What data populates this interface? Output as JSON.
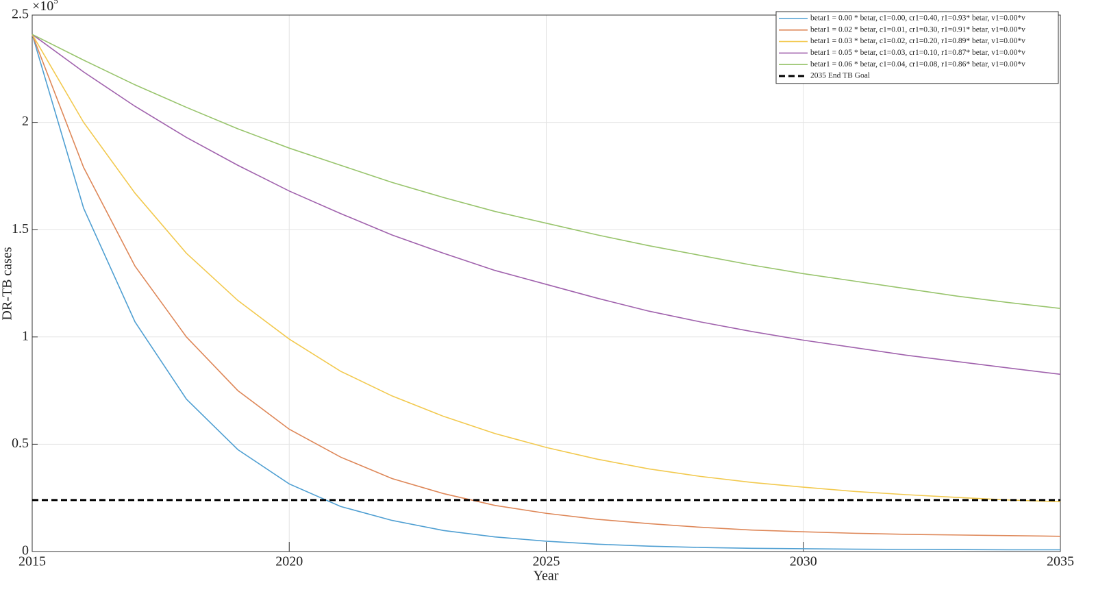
{
  "chart_data": {
    "type": "line",
    "y_label": "DR-TB cases",
    "x_label": "Year",
    "y_multiplier": {
      "base": "×10",
      "exponent": "5"
    },
    "xlim": [
      2015,
      2035
    ],
    "xticks": [
      2015,
      2020,
      2025,
      2030,
      2035
    ],
    "ylim": [
      0,
      2.5
    ],
    "yticks": [
      0,
      0.5,
      1,
      1.5,
      2,
      2.5
    ],
    "grid": true,
    "legend": "top-right",
    "x": [
      2015,
      2016,
      2017,
      2018,
      2019,
      2020,
      2021,
      2022,
      2023,
      2024,
      2025,
      2026,
      2027,
      2028,
      2029,
      2030,
      2031,
      2032,
      2033,
      2034,
      2035
    ],
    "series": [
      {
        "name": "betar1 = 0.00 * betar, c1=0.00, cr1=0.40, r1=0.93* betar, v1=0.00*v",
        "color": "#4f9fd2",
        "values": [
          2.41,
          1.6,
          1.07,
          0.71,
          0.475,
          0.315,
          0.21,
          0.145,
          0.098,
          0.068,
          0.048,
          0.034,
          0.025,
          0.019,
          0.015,
          0.013,
          0.011,
          0.01,
          0.009,
          0.008,
          0.008
        ]
      },
      {
        "name": "betar1 = 0.02 * betar, c1=0.01, cr1=0.30, r1=0.91* betar, v1=0.00*v",
        "color": "#de8758",
        "values": [
          2.41,
          1.79,
          1.33,
          1.0,
          0.75,
          0.57,
          0.44,
          0.34,
          0.27,
          0.215,
          0.178,
          0.15,
          0.13,
          0.113,
          0.1,
          0.092,
          0.085,
          0.08,
          0.077,
          0.074,
          0.071
        ]
      },
      {
        "name": "betar1 = 0.03 * betar, c1=0.02, cr1=0.20, r1=0.89* betar, v1=0.00*v",
        "color": "#f2c94e",
        "values": [
          2.41,
          2.0,
          1.67,
          1.39,
          1.17,
          0.99,
          0.84,
          0.725,
          0.63,
          0.55,
          0.485,
          0.43,
          0.385,
          0.35,
          0.322,
          0.3,
          0.28,
          0.265,
          0.252,
          0.24,
          0.232
        ]
      },
      {
        "name": "betar1 = 0.05 * betar, c1=0.03, cr1=0.10, r1=0.87* betar, v1=0.00*v",
        "color": "#a062ad",
        "values": [
          2.41,
          2.235,
          2.075,
          1.93,
          1.8,
          1.68,
          1.575,
          1.475,
          1.39,
          1.31,
          1.245,
          1.18,
          1.12,
          1.07,
          1.025,
          0.985,
          0.95,
          0.915,
          0.885,
          0.855,
          0.826
        ]
      },
      {
        "name": "betar1 = 0.06 * betar, c1=0.04, cr1=0.08, r1=0.86* betar, v1=0.00*v",
        "color": "#98c46c",
        "values": [
          2.41,
          2.29,
          2.175,
          2.07,
          1.97,
          1.88,
          1.8,
          1.72,
          1.65,
          1.585,
          1.53,
          1.475,
          1.425,
          1.38,
          1.335,
          1.295,
          1.26,
          1.225,
          1.19,
          1.16,
          1.133
        ]
      },
      {
        "name": "2035 End TB Goal",
        "color": "#000000",
        "dashed": true,
        "x": [
          2015,
          2035
        ],
        "values": [
          0.24,
          0.24
        ]
      }
    ]
  }
}
